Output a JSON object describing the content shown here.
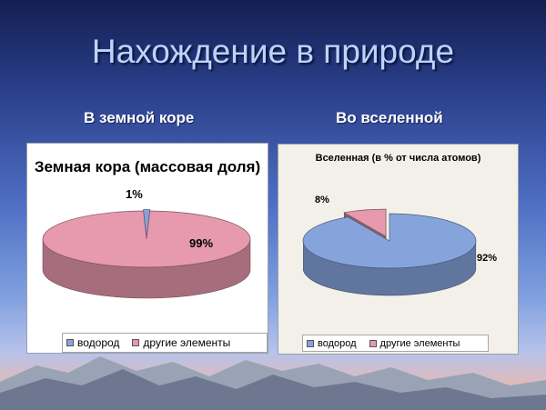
{
  "slide": {
    "title": "Нахождение в природе",
    "heading_left": "В земной коре",
    "heading_right": "Во вселенной"
  },
  "colors": {
    "hydrogen": "#86a4dc",
    "others": "#e799ad"
  },
  "chart_data": [
    {
      "type": "pie",
      "title": "Земная кора (массовая доля)",
      "categories": [
        "водород",
        "другие элементы"
      ],
      "values": [
        1,
        99
      ],
      "labels": [
        "1%",
        "99%"
      ],
      "three_d": true,
      "legend": "bottom"
    },
    {
      "type": "pie",
      "title": "Вселенная (в % от числа атомов)",
      "categories": [
        "водород",
        "другие элементы"
      ],
      "values": [
        92,
        8
      ],
      "labels": [
        "92%",
        "8%"
      ],
      "three_d": true,
      "exploded": "другие элементы",
      "legend": "bottom"
    }
  ]
}
